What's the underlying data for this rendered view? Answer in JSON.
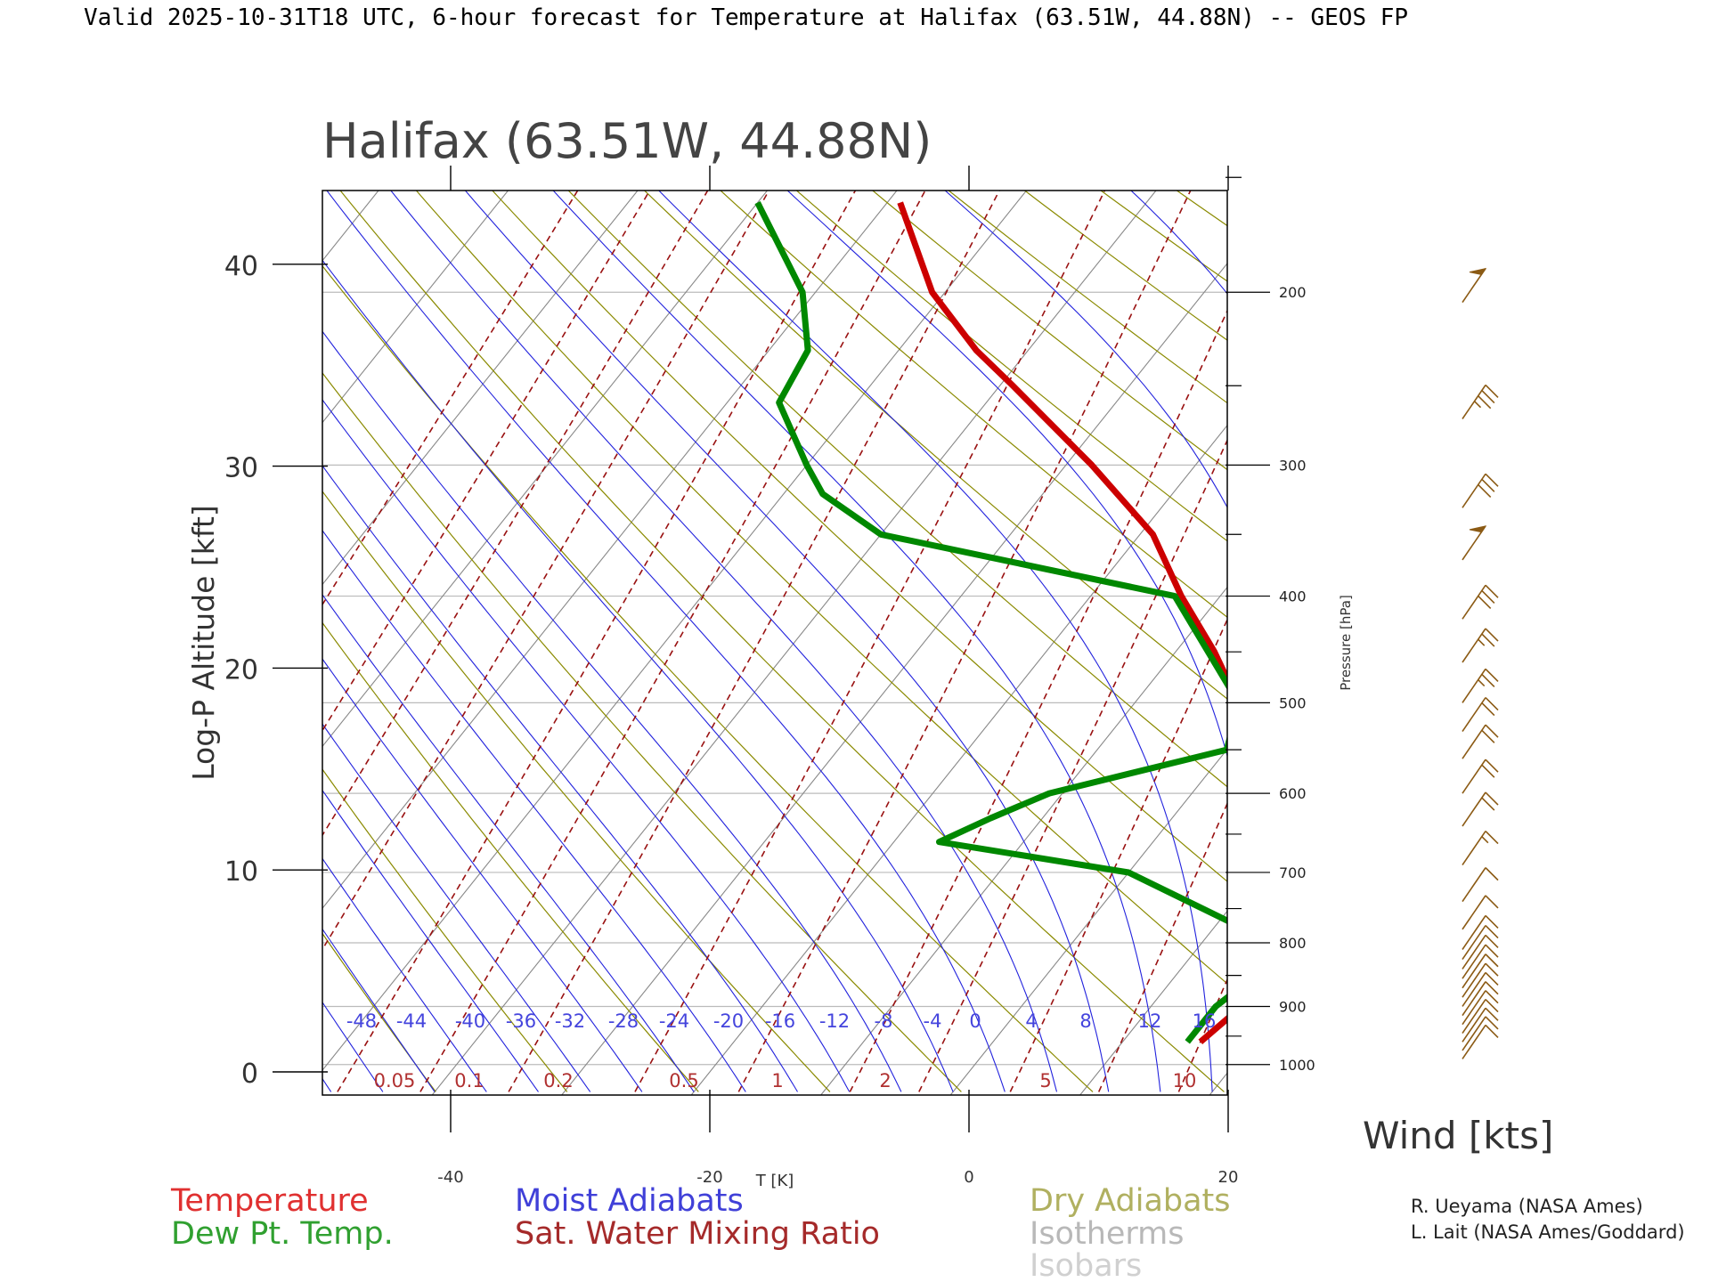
{
  "header": "Valid 2025-10-31T18 UTC, 6-hour forecast for Temperature at Halifax (63.51W, 44.88N) -- GEOS FP",
  "station_title": "Halifax (63.51W, 44.88N)",
  "axes": {
    "y_left_label": "Log-P Altitude [kft]",
    "y_right_label": "Pressure [hPa]",
    "x_label": "T [K]",
    "wind_label": "Wind [kts]"
  },
  "legend": {
    "temperature": "Temperature",
    "dewpoint": "Dew Pt. Temp.",
    "moist": "Moist Adiabats",
    "mixing": "Sat. Water Mixing Ratio",
    "dry": "Dry Adiabats",
    "isotherms": "Isotherms",
    "isobars": "Isobars"
  },
  "credits": {
    "line1": "R. Ueyama (NASA Ames)",
    "line2": "L. Lait (NASA Ames/Goddard)"
  },
  "colors": {
    "temperature": "#cc0000",
    "dewpoint": "#008800",
    "moist": "#2222dd",
    "mixing": "#991111",
    "dry": "#8a8a00",
    "isotherm": "#888888",
    "isobar": "#bbbbbb",
    "wind": "#8b5a14"
  },
  "chart_data": {
    "type": "skew-T log-P sounding",
    "x_ticks": [
      -40,
      -20,
      0,
      20
    ],
    "y_ticks": [
      0,
      10,
      20,
      30,
      40
    ],
    "pressure_ticks": [
      1000,
      900,
      800,
      700,
      600,
      500,
      400,
      300,
      200
    ],
    "moist_labels": [
      -48,
      -44,
      -40,
      -36,
      -32,
      -28,
      -24,
      -20,
      -16,
      -12,
      -8,
      -4,
      0,
      4,
      8,
      12,
      16
    ],
    "mixing_labels": [
      "0.05",
      "0.1",
      "0.2",
      "0.5",
      "1",
      "2",
      "5",
      "10"
    ],
    "temperature": [
      {
        "p": 960,
        "t": 16.0
      },
      {
        "p": 900,
        "t": 17.0
      },
      {
        "p": 815,
        "t": 18.0
      },
      {
        "p": 770,
        "t": 15.0
      },
      {
        "p": 740,
        "t": 13.5
      },
      {
        "p": 700,
        "t": 11.5
      },
      {
        "p": 640,
        "t": 8.0
      },
      {
        "p": 550,
        "t": 2.0
      },
      {
        "p": 500,
        "t": -2.0
      },
      {
        "p": 450,
        "t": -7.0
      },
      {
        "p": 400,
        "t": -13.0
      },
      {
        "p": 350,
        "t": -19.0
      },
      {
        "p": 300,
        "t": -28.0
      },
      {
        "p": 250,
        "t": -39.0
      },
      {
        "p": 230,
        "t": -44.0
      },
      {
        "p": 200,
        "t": -51.0
      },
      {
        "p": 160,
        "t": -59.0
      }
    ],
    "dewpoint": [
      {
        "p": 960,
        "t": 15.0
      },
      {
        "p": 900,
        "t": 15.0
      },
      {
        "p": 815,
        "t": 17.0
      },
      {
        "p": 770,
        "t": 11.0
      },
      {
        "p": 700,
        "t": 0.0
      },
      {
        "p": 660,
        "t": -16.5
      },
      {
        "p": 630,
        "t": -14.0
      },
      {
        "p": 600,
        "t": -11.0
      },
      {
        "p": 550,
        "t": 0.0
      },
      {
        "p": 500,
        "t": -2.0
      },
      {
        "p": 400,
        "t": -13.5
      },
      {
        "p": 350,
        "t": -40.0
      },
      {
        "p": 320,
        "t": -47.0
      },
      {
        "p": 300,
        "t": -50.0
      },
      {
        "p": 260,
        "t": -56.0
      },
      {
        "p": 230,
        "t": -57.0
      },
      {
        "p": 200,
        "t": -61.0
      },
      {
        "p": 160,
        "t": -70.0
      }
    ],
    "wind_barbs": [
      {
        "p": 990,
        "kts": 10
      },
      {
        "p": 975,
        "kts": 10
      },
      {
        "p": 960,
        "kts": 10
      },
      {
        "p": 945,
        "kts": 10
      },
      {
        "p": 930,
        "kts": 10
      },
      {
        "p": 915,
        "kts": 10
      },
      {
        "p": 900,
        "kts": 10
      },
      {
        "p": 885,
        "kts": 10
      },
      {
        "p": 870,
        "kts": 10
      },
      {
        "p": 855,
        "kts": 10
      },
      {
        "p": 840,
        "kts": 10
      },
      {
        "p": 825,
        "kts": 10
      },
      {
        "p": 810,
        "kts": 10
      },
      {
        "p": 780,
        "kts": 10
      },
      {
        "p": 740,
        "kts": 10
      },
      {
        "p": 690,
        "kts": 15
      },
      {
        "p": 640,
        "kts": 20
      },
      {
        "p": 600,
        "kts": 20
      },
      {
        "p": 560,
        "kts": 20
      },
      {
        "p": 530,
        "kts": 20
      },
      {
        "p": 500,
        "kts": 25
      },
      {
        "p": 460,
        "kts": 25
      },
      {
        "p": 420,
        "kts": 30
      },
      {
        "p": 370,
        "kts": 50
      },
      {
        "p": 330,
        "kts": 30
      },
      {
        "p": 270,
        "kts": 35
      },
      {
        "p": 205,
        "kts": 50
      }
    ]
  }
}
